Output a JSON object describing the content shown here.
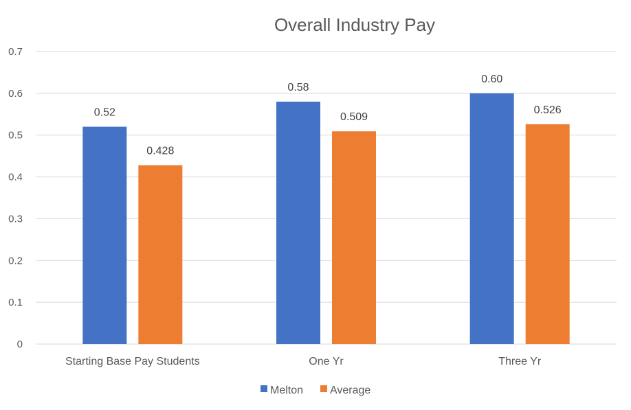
{
  "chart_data": {
    "type": "bar",
    "title": "Overall Industry Pay",
    "categories": [
      "Starting Base Pay Students",
      "One Yr",
      "Three Yr"
    ],
    "series": [
      {
        "name": "Melton",
        "color": "#4472C4",
        "values": [
          0.52,
          0.58,
          0.6
        ],
        "labels": [
          "0.52",
          "0.58",
          "0.60"
        ]
      },
      {
        "name": "Average",
        "color": "#ED7D31",
        "values": [
          0.428,
          0.509,
          0.526
        ],
        "labels": [
          "0.428",
          "0.509",
          "0.526"
        ]
      }
    ],
    "ylim": [
      0,
      0.7
    ],
    "yticks": [
      "0",
      "0.1",
      "0.2",
      "0.3",
      "0.4",
      "0.5",
      "0.6",
      "0.7"
    ],
    "grid": true,
    "legend": "bottom"
  }
}
